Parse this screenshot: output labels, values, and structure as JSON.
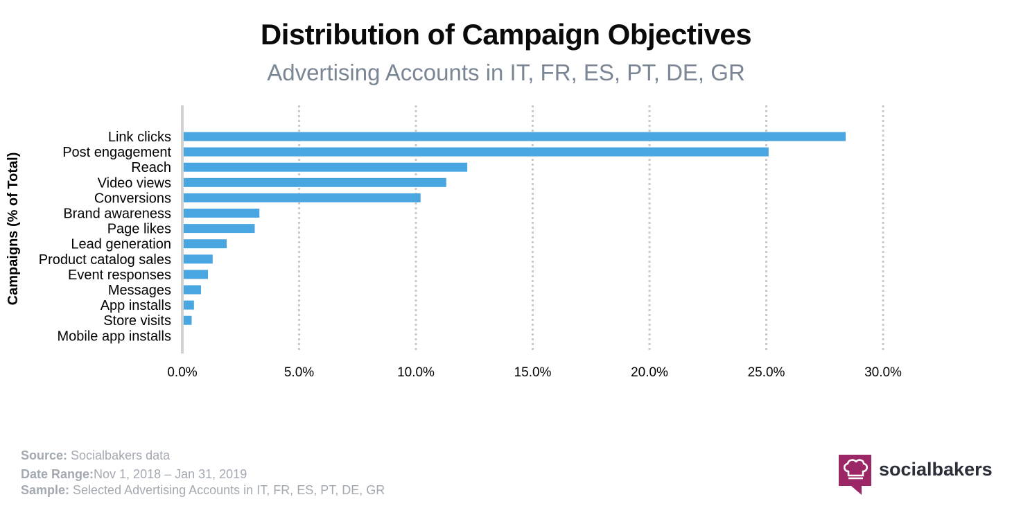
{
  "header": {
    "title": "Distribution of Campaign Objectives",
    "subtitle": "Advertising Accounts in IT, FR, ES, PT, DE, GR"
  },
  "chart_data": {
    "type": "bar",
    "orientation": "horizontal",
    "categories": [
      "Link clicks",
      "Post engagement",
      "Reach",
      "Video views",
      "Conversions",
      "Brand awareness",
      "Page likes",
      "Lead generation",
      "Product catalog sales",
      "Event responses",
      "Messages",
      "App installs",
      "Store visits",
      "Mobile app installs"
    ],
    "values": [
      28.4,
      25.1,
      12.2,
      11.3,
      10.2,
      3.3,
      3.1,
      1.9,
      1.3,
      1.1,
      0.8,
      0.5,
      0.4,
      0.0
    ],
    "xlim": [
      0,
      30
    ],
    "xticks": [
      "0.0%",
      "5.0%",
      "10.0%",
      "15.0%",
      "20.0%",
      "25.0%",
      "30.0%"
    ],
    "ylabel": "Campaigns (% of Total)",
    "xlabel": "",
    "grid": "vertical dotted",
    "bar_color": "#4aa6e0"
  },
  "footer": {
    "source_label": "Source:",
    "source_value": " Socialbakers data",
    "date_label": "Date Range:",
    "date_value": "Nov 1, 2018  – Jan 31, 2019",
    "sample_label": "Sample:",
    "sample_value": " Selected Advertising Accounts in IT, FR, ES, PT, DE, GR"
  },
  "logo": {
    "text": "socialbakers",
    "icon": "chef-hat-speech-bubble-icon",
    "color": "#9b2767"
  }
}
